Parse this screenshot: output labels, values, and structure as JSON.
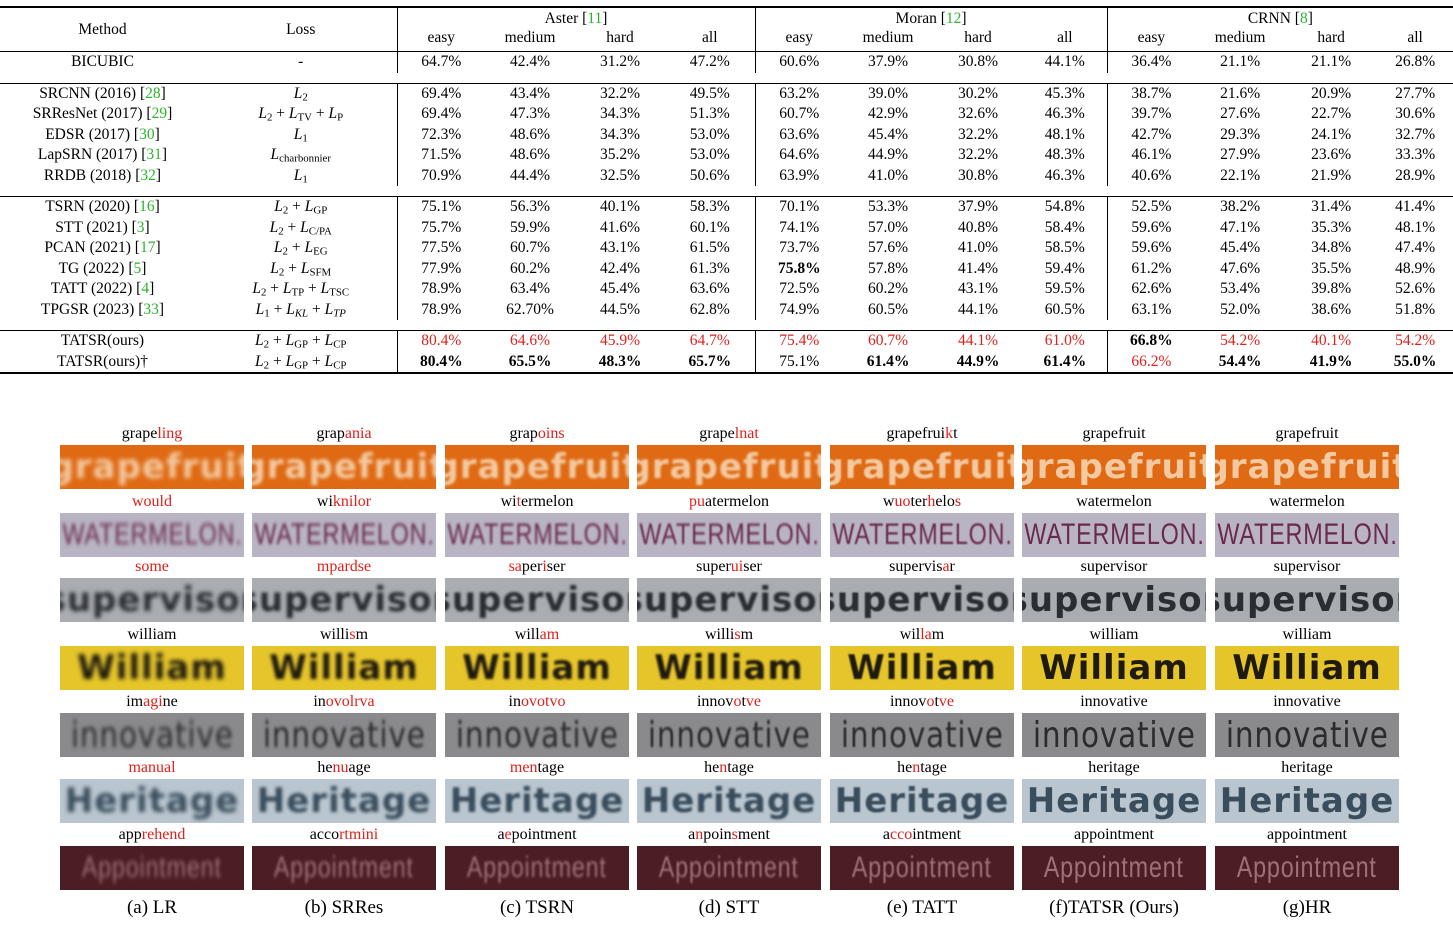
{
  "table": {
    "headers": {
      "method": "Method",
      "loss": "Loss",
      "groups": [
        {
          "name": "Aster",
          "ref": "11"
        },
        {
          "name": "Moran",
          "ref": "12"
        },
        {
          "name": "CRNN",
          "ref": "8"
        }
      ],
      "subcols": [
        "easy",
        "medium",
        "hard",
        "all"
      ]
    },
    "rows": [
      {
        "method": "BICUBIC",
        "ref": "",
        "loss": "-",
        "vals": [
          "64.7%",
          "42.4%",
          "31.2%",
          "47.2%",
          "60.6%",
          "37.9%",
          "30.8%",
          "44.1%",
          "36.4%",
          "21.1%",
          "21.1%",
          "26.8%"
        ]
      },
      {
        "method": "SRCNN (2016)",
        "ref": "28",
        "loss": "L_2",
        "vals": [
          "69.4%",
          "43.4%",
          "32.2%",
          "49.5%",
          "63.2%",
          "39.0%",
          "30.2%",
          "45.3%",
          "38.7%",
          "21.6%",
          "20.9%",
          "27.7%"
        ]
      },
      {
        "method": "SRResNet (2017)",
        "ref": "29",
        "loss": "L_2 + L_TV + L_P",
        "vals": [
          "69.4%",
          "47.3%",
          "34.3%",
          "51.3%",
          "60.7%",
          "42.9%",
          "32.6%",
          "46.3%",
          "39.7%",
          "27.6%",
          "22.7%",
          "30.6%"
        ]
      },
      {
        "method": "EDSR (2017)",
        "ref": "30",
        "loss": "L_1",
        "vals": [
          "72.3%",
          "48.6%",
          "34.3%",
          "53.0%",
          "63.6%",
          "45.4%",
          "32.2%",
          "48.1%",
          "42.7%",
          "29.3%",
          "24.1%",
          "32.7%"
        ]
      },
      {
        "method": "LapSRN (2017)",
        "ref": "31",
        "loss": "L_charbonnier",
        "vals": [
          "71.5%",
          "48.6%",
          "35.2%",
          "53.0%",
          "64.6%",
          "44.9%",
          "32.2%",
          "48.3%",
          "46.1%",
          "27.9%",
          "23.6%",
          "33.3%"
        ]
      },
      {
        "method": "RRDB (2018)",
        "ref": "32",
        "loss": "L_1",
        "vals": [
          "70.9%",
          "44.4%",
          "32.5%",
          "50.6%",
          "63.9%",
          "41.0%",
          "30.8%",
          "46.3%",
          "40.6%",
          "22.1%",
          "21.9%",
          "28.9%"
        ]
      },
      {
        "method": "TSRN (2020)",
        "ref": "16",
        "loss": "L_2 + L_GP",
        "vals": [
          "75.1%",
          "56.3%",
          "40.1%",
          "58.3%",
          "70.1%",
          "53.3%",
          "37.9%",
          "54.8%",
          "52.5%",
          "38.2%",
          "31.4%",
          "41.4%"
        ]
      },
      {
        "method": "STT (2021)",
        "ref": "3",
        "loss": "L_2 + L_C/PA",
        "vals": [
          "75.7%",
          "59.9%",
          "41.6%",
          "60.1%",
          "74.1%",
          "57.0%",
          "40.8%",
          "58.4%",
          "59.6%",
          "47.1%",
          "35.3%",
          "48.1%"
        ]
      },
      {
        "method": "PCAN (2021)",
        "ref": "17",
        "loss": "L_2 + L_EG",
        "vals": [
          "77.5%",
          "60.7%",
          "43.1%",
          "61.5%",
          "73.7%",
          "57.6%",
          "41.0%",
          "58.5%",
          "59.6%",
          "45.4%",
          "34.8%",
          "47.4%"
        ]
      },
      {
        "method": "TG (2022)",
        "ref": "5",
        "loss": "L_2 + L_SFM",
        "vals": [
          "77.9%",
          "60.2%",
          "42.4%",
          "61.3%",
          "75.8%",
          "57.8%",
          "41.4%",
          "59.4%",
          "61.2%",
          "47.6%",
          "35.5%",
          "48.9%"
        ]
      },
      {
        "method": "TATT (2022)",
        "ref": "4",
        "loss": "L_2 + L_TP + L_TSC",
        "vals": [
          "78.9%",
          "63.4%",
          "45.4%",
          "63.6%",
          "72.5%",
          "60.2%",
          "43.1%",
          "59.5%",
          "62.6%",
          "53.4%",
          "39.8%",
          "52.6%"
        ]
      },
      {
        "method": "TPGSR (2023)",
        "ref": "33",
        "loss": "L_1 + L_KL + L_TP",
        "vals": [
          "78.9%",
          "62.70%",
          "44.5%",
          "62.8%",
          "74.9%",
          "60.5%",
          "44.1%",
          "60.5%",
          "63.1%",
          "52.0%",
          "38.6%",
          "51.8%"
        ]
      },
      {
        "method": "TATSR(ours)",
        "ref": "",
        "loss": "L_2 + L_GP + L_CP",
        "vals": [
          "80.4%",
          "64.6%",
          "45.9%",
          "64.7%",
          "75.4%",
          "60.7%",
          "44.1%",
          "61.0%",
          "66.8%",
          "54.2%",
          "40.1%",
          "54.2%"
        ]
      },
      {
        "method": "TATSR(ours)†",
        "ref": "",
        "loss": "L_2 + L_GP + L_CP",
        "vals": [
          "80.4%",
          "65.5%",
          "48.3%",
          "65.7%",
          "75.1%",
          "61.4%",
          "44.9%",
          "61.4%",
          "66.2%",
          "54.4%",
          "41.9%",
          "55.0%"
        ]
      }
    ]
  },
  "figure": {
    "captions": [
      "(a) LR",
      "(b) SRRes",
      "(c) TSRN",
      "(d) STT",
      "(e) TATT",
      "(f)TATSR (Ours)",
      "(g)HR"
    ],
    "rows": [
      {
        "crop_text": "grapefruit",
        "bg": "#e06a14",
        "fg": "#f2c9a0",
        "preds": [
          [
            [
              "grape",
              0
            ],
            [
              "ling",
              1
            ]
          ],
          [
            [
              "grap",
              0
            ],
            [
              "ania",
              1
            ]
          ],
          [
            [
              "grap",
              0
            ],
            [
              "oins",
              1
            ]
          ],
          [
            [
              "grape",
              0
            ],
            [
              "lnat",
              1
            ]
          ],
          [
            [
              "grapefrui",
              0
            ],
            [
              "k",
              1
            ],
            [
              "t",
              0
            ]
          ],
          [
            [
              "grapefruit",
              0
            ]
          ],
          [
            [
              "grapefruit",
              0
            ]
          ]
        ]
      },
      {
        "crop_text": "WATERMELON.",
        "bg": "#b8b4c4",
        "fg": "#6a2a4a",
        "preds": [
          [
            [
              "would",
              1
            ]
          ],
          [
            [
              "wi",
              0
            ],
            [
              "knilor",
              1
            ]
          ],
          [
            [
              "wi",
              0
            ],
            [
              "t",
              1
            ],
            [
              "ermelon",
              0
            ]
          ],
          [
            [
              "pu",
              1
            ],
            [
              "atermelon",
              0
            ]
          ],
          [
            [
              "w",
              0
            ],
            [
              "uo",
              1
            ],
            [
              "ter",
              0
            ],
            [
              "h",
              1
            ],
            [
              "elo",
              0
            ],
            [
              "s",
              1
            ]
          ],
          [
            [
              "watermelon",
              0
            ]
          ],
          [
            [
              "watermelon",
              0
            ]
          ]
        ]
      },
      {
        "crop_text": "supervisor",
        "bg": "#a9acb0",
        "fg": "#2a2d33",
        "preds": [
          [
            [
              "some",
              1
            ]
          ],
          [
            [
              "mpardse",
              1
            ]
          ],
          [
            [
              "sa",
              1
            ],
            [
              "per",
              0
            ],
            [
              "i",
              1
            ],
            [
              "ser",
              0
            ]
          ],
          [
            [
              "super",
              0
            ],
            [
              "ui",
              1
            ],
            [
              "ser",
              0
            ]
          ],
          [
            [
              "supervis",
              0
            ],
            [
              "a",
              1
            ],
            [
              "r",
              0
            ]
          ],
          [
            [
              "supervisor",
              0
            ]
          ],
          [
            [
              "supervisor",
              0
            ]
          ]
        ]
      },
      {
        "crop_text": "William",
        "bg": "#e6c52a",
        "fg": "#1e1a10",
        "preds": [
          [
            [
              "william",
              0
            ]
          ],
          [
            [
              "willi",
              0
            ],
            [
              "s",
              1
            ],
            [
              "m",
              0
            ]
          ],
          [
            [
              "will",
              0
            ],
            [
              "am",
              1
            ]
          ],
          [
            [
              "willi",
              0
            ],
            [
              "s",
              1
            ],
            [
              "m",
              0
            ]
          ],
          [
            [
              "wil",
              0
            ],
            [
              "la",
              1
            ],
            [
              "m",
              0
            ]
          ],
          [
            [
              "william",
              0
            ]
          ],
          [
            [
              "william",
              0
            ]
          ]
        ]
      },
      {
        "crop_text": "innovative",
        "bg": "#8a8a8c",
        "fg": "#2b2b2d",
        "preds": [
          [
            [
              "im",
              0
            ],
            [
              "agi",
              1
            ],
            [
              "ne",
              0
            ]
          ],
          [
            [
              "in",
              0
            ],
            [
              "ovolrva",
              1
            ]
          ],
          [
            [
              "in",
              0
            ],
            [
              "ovotvo",
              1
            ]
          ],
          [
            [
              "innov",
              0
            ],
            [
              "o",
              1
            ],
            [
              "t",
              0
            ],
            [
              "ve",
              1
            ]
          ],
          [
            [
              "innov",
              0
            ],
            [
              "o",
              1
            ],
            [
              "t",
              0
            ],
            [
              "ve",
              1
            ]
          ],
          [
            [
              "innovative",
              0
            ]
          ],
          [
            [
              "innovative",
              0
            ]
          ]
        ]
      },
      {
        "crop_text": "Heritage",
        "bg": "#b9c6d0",
        "fg": "#3a4d5c",
        "preds": [
          [
            [
              "manual",
              1
            ]
          ],
          [
            [
              "he",
              0
            ],
            [
              "nu",
              1
            ],
            [
              "age",
              0
            ]
          ],
          [
            [
              "men",
              1
            ],
            [
              "tage",
              0
            ]
          ],
          [
            [
              "he",
              0
            ],
            [
              "n",
              1
            ],
            [
              "tage",
              0
            ]
          ],
          [
            [
              "he",
              0
            ],
            [
              "n",
              1
            ],
            [
              "tage",
              0
            ]
          ],
          [
            [
              "heritage",
              0
            ]
          ],
          [
            [
              "heritage",
              0
            ]
          ]
        ]
      },
      {
        "crop_text": "Appointment",
        "bg": "#4a1e22",
        "fg": "#a0707a",
        "preds": [
          [
            [
              "app",
              0
            ],
            [
              "rehend",
              1
            ]
          ],
          [
            [
              "acco",
              0
            ],
            [
              "rtmini",
              1
            ]
          ],
          [
            [
              "a",
              0
            ],
            [
              "e",
              1
            ],
            [
              "pointment",
              0
            ]
          ],
          [
            [
              "a",
              0
            ],
            [
              "n",
              1
            ],
            [
              "poin",
              0
            ],
            [
              "s",
              1
            ],
            [
              "ment",
              0
            ]
          ],
          [
            [
              "a",
              0
            ],
            [
              "cco",
              1
            ],
            [
              "intment",
              0
            ]
          ],
          [
            [
              "appointment",
              0
            ]
          ],
          [
            [
              "appointment",
              0
            ]
          ]
        ]
      }
    ]
  },
  "styles": {
    "red": "#e0201b",
    "green": "#2bb52b"
  }
}
